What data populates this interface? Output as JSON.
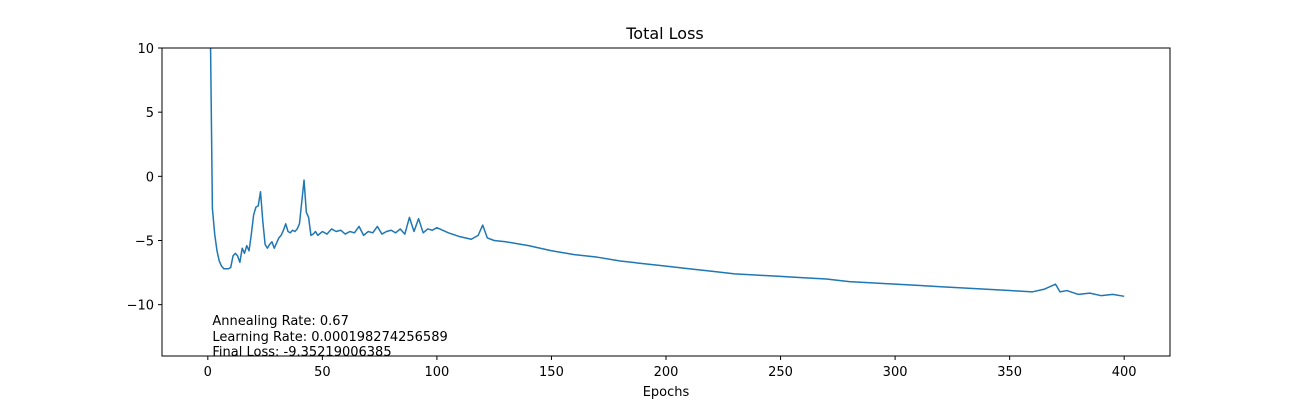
{
  "chart_data": {
    "type": "line",
    "title": "Total Loss",
    "xlabel": "Epochs",
    "ylabel": "",
    "xlim": [
      -20,
      420
    ],
    "ylim": [
      -14,
      10
    ],
    "xticks": [
      0,
      50,
      100,
      150,
      200,
      250,
      300,
      350,
      400
    ],
    "yticks": [
      -10,
      -5,
      0,
      5,
      10
    ],
    "ytick_labels": [
      "−10",
      "−5",
      "0",
      "5",
      "10"
    ],
    "grid": false,
    "line_color": "#1f77b4",
    "annotations": [
      "Annealing Rate: 0.67",
      "Learning Rate: 0.000198274256589",
      "Final Loss: -9.35219006385"
    ],
    "series": [
      {
        "x": [
          1,
          1.2,
          2,
          3,
          4,
          5,
          6,
          7,
          9,
          10,
          11,
          12,
          13,
          14,
          15,
          16,
          17,
          18,
          19,
          20,
          21,
          22,
          23,
          24,
          25,
          26,
          27,
          28,
          29,
          30,
          31,
          32,
          33,
          34,
          35,
          36,
          37,
          38,
          39,
          40,
          41,
          42,
          43,
          44,
          45,
          46,
          47,
          48,
          50,
          52,
          54,
          56,
          58,
          60,
          62,
          64,
          66,
          68,
          70,
          72,
          74,
          76,
          78,
          80,
          82,
          84,
          86,
          88,
          90,
          92,
          94,
          96,
          98,
          100,
          105,
          110,
          115,
          118,
          120,
          122,
          125,
          130,
          140,
          150,
          160,
          170,
          180,
          190,
          200,
          210,
          220,
          230,
          240,
          250,
          260,
          270,
          280,
          290,
          300,
          310,
          320,
          330,
          340,
          350,
          360,
          365,
          370,
          372,
          375,
          380,
          385,
          390,
          395,
          400
        ],
        "y": [
          10,
          10,
          -2.5,
          -4.5,
          -5.8,
          -6.6,
          -7.0,
          -7.2,
          -7.2,
          -7.1,
          -6.2,
          -6.0,
          -6.2,
          -6.7,
          -5.6,
          -6.0,
          -5.4,
          -5.8,
          -4.5,
          -3.0,
          -2.4,
          -2.3,
          -1.2,
          -3.5,
          -5.3,
          -5.6,
          -5.3,
          -5.1,
          -5.6,
          -5.2,
          -4.8,
          -4.6,
          -4.2,
          -3.7,
          -4.3,
          -4.4,
          -4.2,
          -4.3,
          -4.1,
          -3.7,
          -2.0,
          -0.3,
          -2.8,
          -3.2,
          -4.6,
          -4.5,
          -4.3,
          -4.6,
          -4.3,
          -4.5,
          -4.1,
          -4.3,
          -4.2,
          -4.5,
          -4.3,
          -4.4,
          -3.9,
          -4.6,
          -4.3,
          -4.4,
          -3.9,
          -4.5,
          -4.3,
          -4.2,
          -4.4,
          -4.1,
          -4.5,
          -3.2,
          -4.3,
          -3.3,
          -4.4,
          -4.1,
          -4.2,
          -4.0,
          -4.4,
          -4.7,
          -4.9,
          -4.6,
          -3.8,
          -4.8,
          -5.0,
          -5.1,
          -5.4,
          -5.8,
          -6.1,
          -6.3,
          -6.6,
          -6.8,
          -7.0,
          -7.2,
          -7.4,
          -7.6,
          -7.7,
          -7.8,
          -7.9,
          -8.0,
          -8.2,
          -8.3,
          -8.4,
          -8.5,
          -8.6,
          -8.7,
          -8.8,
          -8.9,
          -9.0,
          -8.8,
          -8.4,
          -9.0,
          -8.9,
          -9.2,
          -9.1,
          -9.3,
          -9.2,
          -9.35
        ]
      }
    ]
  }
}
